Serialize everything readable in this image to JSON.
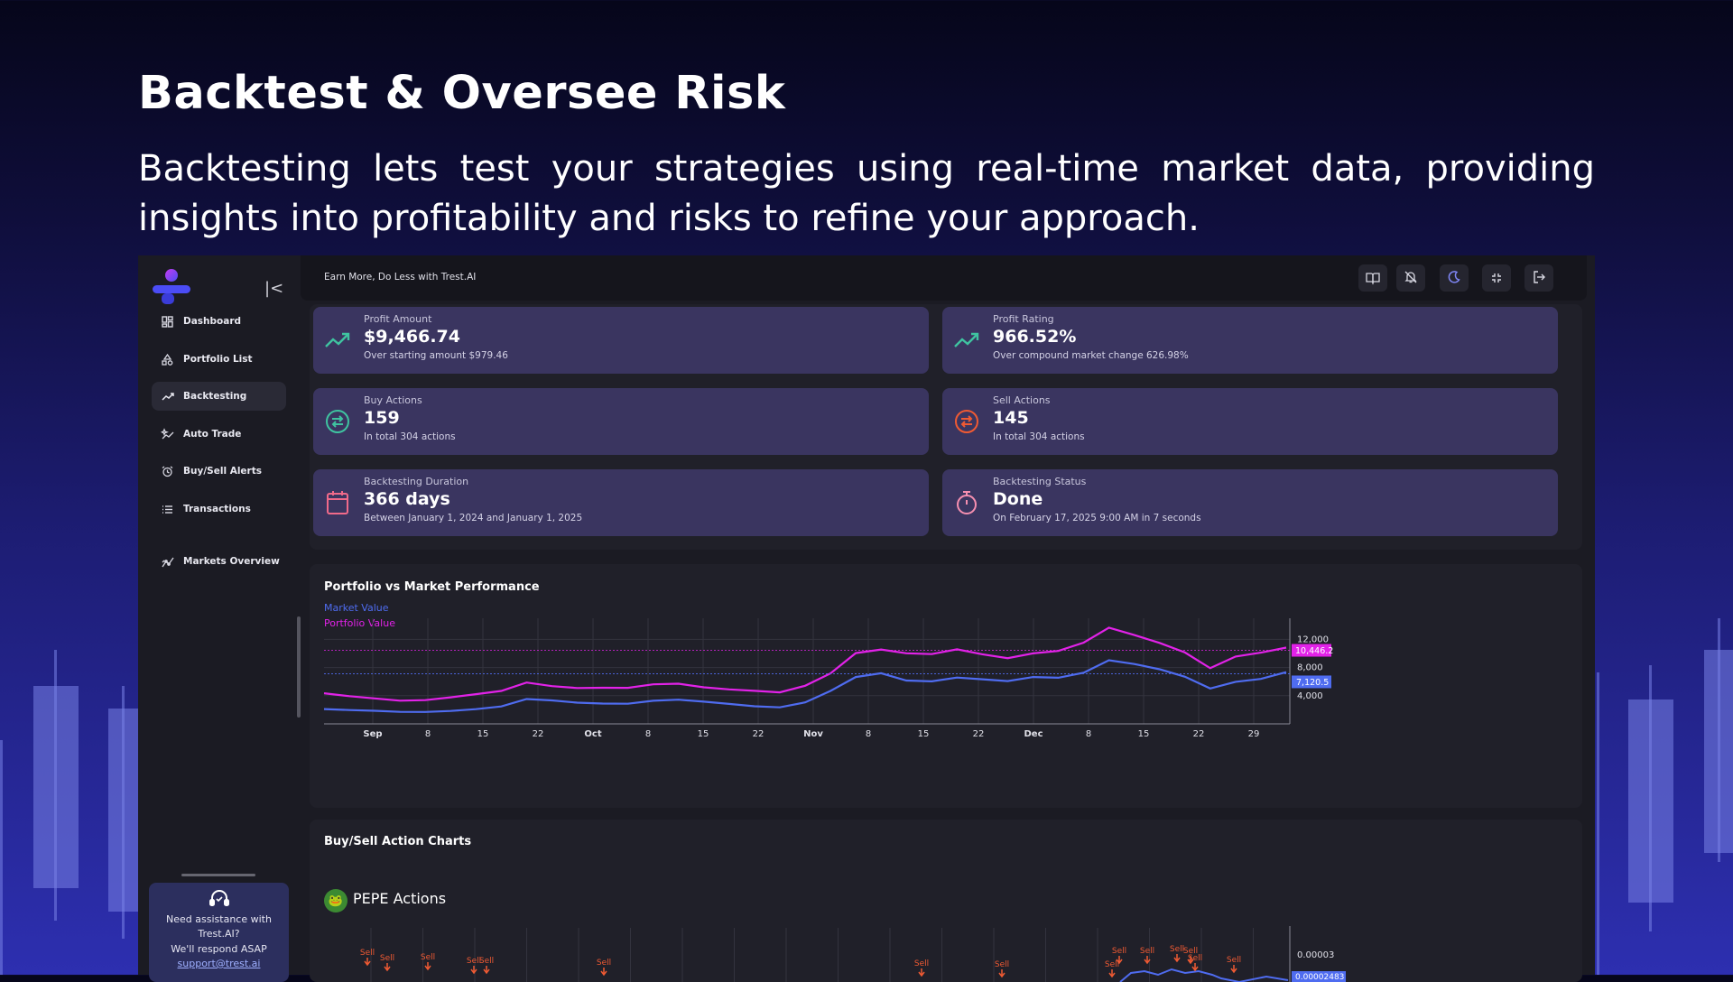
{
  "hero": {
    "title": "Backtest & Oversee Risk",
    "text": "Backtesting lets test your strategies using real-time market data, providing insights into profitability and risks to refine your approach."
  },
  "sidebar": {
    "items": [
      {
        "label": "Dashboard",
        "icon": "dashboard-icon"
      },
      {
        "label": "Portfolio List",
        "icon": "shapes-icon"
      },
      {
        "label": "Backtesting",
        "icon": "trend-icon"
      },
      {
        "label": "Auto Trade",
        "icon": "sparkle-chart-icon"
      },
      {
        "label": "Buy/Sell Alerts",
        "icon": "alarm-icon"
      },
      {
        "label": "Transactions",
        "icon": "list-icon"
      },
      {
        "label": "Markets Overview",
        "icon": "market-chart-icon"
      }
    ],
    "help": {
      "line1": "Need assistance with",
      "line2": "Trest.AI?",
      "line3": "We'll respond ASAP",
      "email": "support@trest.ai"
    }
  },
  "topbar": {
    "title": "Earn More, Do Less with Trest.AI",
    "buttons": [
      "book-icon",
      "bell-off-icon",
      "moon-icon",
      "fullscreen-exit-icon",
      "logout-icon"
    ]
  },
  "stats": {
    "profit_amount": {
      "label": "Profit Amount",
      "value": "$9,466.74",
      "sub": "Over starting amount $979.46"
    },
    "profit_rating": {
      "label": "Profit Rating",
      "value": "966.52%",
      "sub": "Over compound market change 626.98%"
    },
    "buy_actions": {
      "label": "Buy Actions",
      "value": "159",
      "sub": "In total 304 actions"
    },
    "sell_actions": {
      "label": "Sell Actions",
      "value": "145",
      "sub": "In total 304 actions"
    },
    "duration": {
      "label": "Backtesting Duration",
      "value": "366 days",
      "sub": "Between January 1, 2024 and January 1, 2025"
    },
    "status": {
      "label": "Backtesting Status",
      "value": "Done",
      "sub": "On February 17, 2025 9:00 AM in 7 seconds"
    }
  },
  "performance": {
    "title": "Portfolio vs Market Performance",
    "legend_market": "Market Value",
    "legend_portfolio": "Portfolio Value"
  },
  "actions": {
    "title": "Buy/Sell Action Charts",
    "coin_label": "PEPE Actions",
    "sell_label": "Sell",
    "y_tick": "0.00003",
    "current_tag": "0.00002483"
  },
  "colors": {
    "market": "#4f6cf0",
    "portfolio": "#e222e8",
    "profit_green": "#3fc3a0",
    "sell_red": "#ef5a33",
    "accent": "#9fb0ff"
  },
  "chart_data": {
    "type": "line",
    "title": "Portfolio vs Market Performance",
    "x_tick_labels": [
      "Sep",
      "8",
      "15",
      "22",
      "Oct",
      "8",
      "15",
      "22",
      "Nov",
      "8",
      "15",
      "22",
      "Dec",
      "8",
      "15",
      "22",
      "29"
    ],
    "y_tick_labels": [
      "12,000",
      "8,000",
      "4,000"
    ],
    "y_ticks": [
      12000,
      8000,
      4000
    ],
    "ylim": [
      0,
      15000
    ],
    "current_market_label": "7,120.5",
    "current_portfolio_label": "10,446.2",
    "current_market": 7120.5,
    "current_portfolio": 10446.2,
    "series": [
      {
        "name": "Market Value",
        "values": [
          2100,
          1900,
          1800,
          1700,
          1750,
          1900,
          2100,
          2400,
          3400,
          3300,
          3100,
          3000,
          2900,
          3200,
          3300,
          3100,
          2900,
          2600,
          2400,
          3000,
          4500,
          6500,
          7300,
          6400,
          6200,
          6500,
          6100,
          5900,
          6700,
          6800,
          7500,
          9000,
          8200,
          7500,
          6700,
          5200,
          6200,
          6400,
          7120.5
        ]
      },
      {
        "name": "Portfolio Value",
        "values": [
          4200,
          3800,
          3600,
          3400,
          3500,
          3800,
          4100,
          4500,
          5800,
          5500,
          5300,
          5200,
          5000,
          5400,
          5600,
          5300,
          5100,
          4800,
          4400,
          5200,
          7000,
          10200,
          11000,
          10300,
          9800,
          10200,
          9600,
          9400,
          10400,
          10700,
          11500,
          13200,
          12200,
          11500,
          10500,
          8200,
          9600,
          9800,
          10446.2
        ]
      }
    ]
  }
}
